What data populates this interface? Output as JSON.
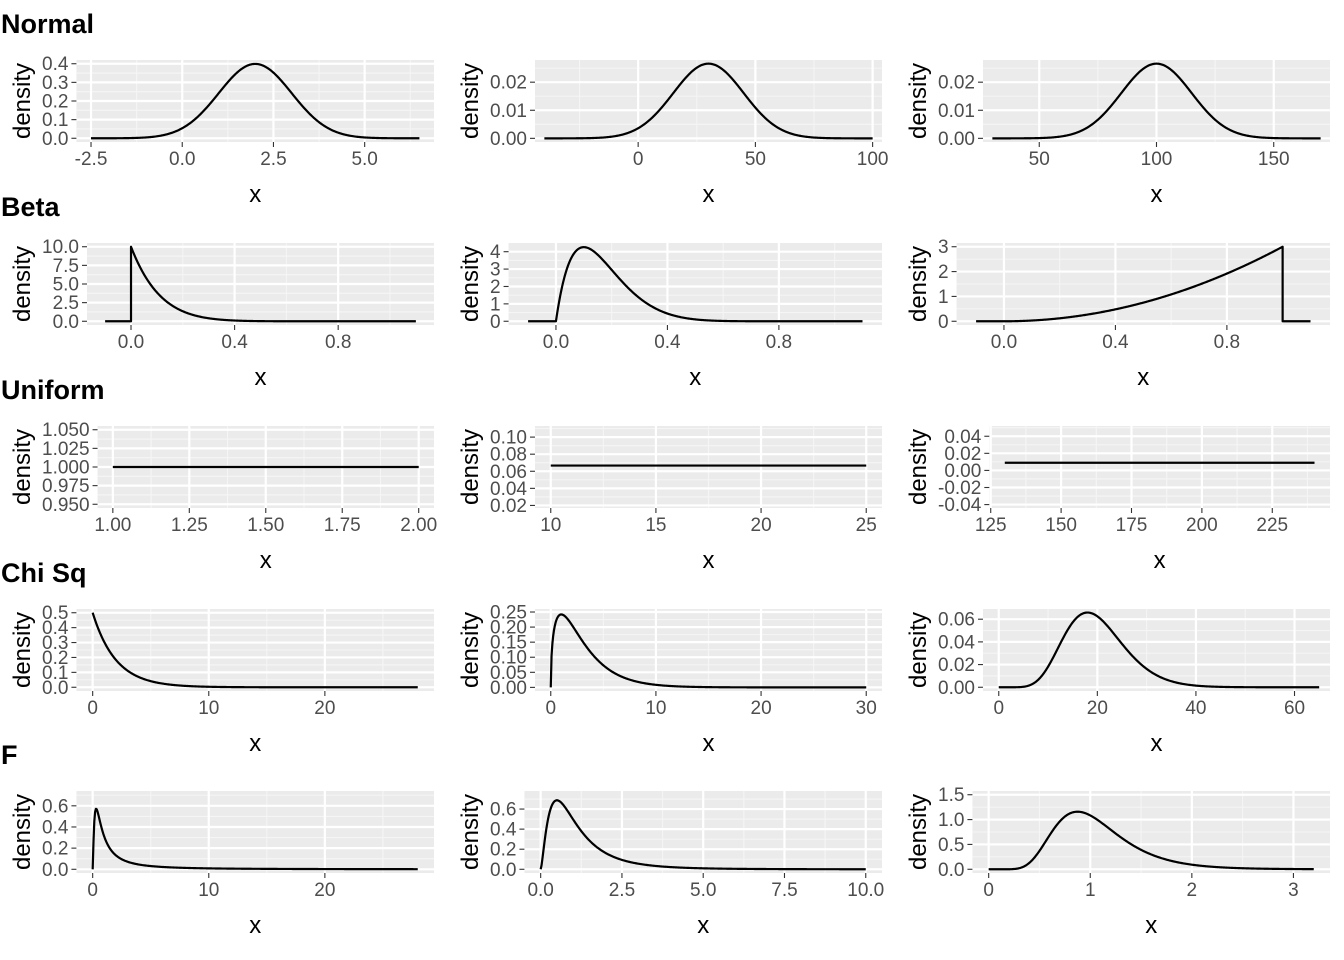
{
  "rows": [
    {
      "title": "Normal",
      "panels": [
        {
          "xlabel": "x",
          "ylabel": "density",
          "xlim": [
            -2.9,
            6.9
          ],
          "ylim": [
            -0.02,
            0.42
          ],
          "xticks": [
            -2.5,
            0.0,
            2.5,
            5.0
          ],
          "xtick_labels": [
            "-2.5",
            "0.0",
            "2.5",
            "5.0"
          ],
          "yticks": [
            0.0,
            0.1,
            0.2,
            0.3,
            0.4
          ],
          "ytick_labels": [
            "0.0",
            "0.1",
            "0.2",
            "0.3",
            "0.4"
          ],
          "curve": {
            "dist": "normal",
            "mean": 2,
            "sd": 1,
            "from": -2.5,
            "to": 6.5
          }
        },
        {
          "xlabel": "x",
          "ylabel": "density",
          "xlim": [
            -44,
            104
          ],
          "ylim": [
            -0.0013,
            0.0279
          ],
          "xticks": [
            0,
            50,
            100
          ],
          "xtick_labels": [
            "0",
            "50",
            "100"
          ],
          "yticks": [
            0.0,
            0.01,
            0.02
          ],
          "ytick_labels": [
            "0.00",
            "0.01",
            "0.02"
          ],
          "curve": {
            "dist": "normal",
            "mean": 30,
            "sd": 15,
            "from": -40,
            "to": 100
          }
        },
        {
          "xlabel": "x",
          "ylabel": "density",
          "xlim": [
            26,
            174
          ],
          "ylim": [
            -0.0013,
            0.0279
          ],
          "xticks": [
            50,
            100,
            150
          ],
          "xtick_labels": [
            "50",
            "100",
            "150"
          ],
          "yticks": [
            0.0,
            0.01,
            0.02
          ],
          "ytick_labels": [
            "0.00",
            "0.01",
            "0.02"
          ],
          "curve": {
            "dist": "normal",
            "mean": 100,
            "sd": 15,
            "from": 30,
            "to": 170
          }
        }
      ]
    },
    {
      "title": "Beta",
      "panels": [
        {
          "xlabel": "x",
          "ylabel": "density",
          "xlim": [
            -0.17,
            1.17
          ],
          "ylim": [
            -0.5,
            10.5
          ],
          "xticks": [
            0.0,
            0.4,
            0.8
          ],
          "xtick_labels": [
            "0.0",
            "0.4",
            "0.8"
          ],
          "yticks": [
            0.0,
            2.5,
            5.0,
            7.5,
            10.0
          ],
          "ytick_labels": [
            "0.0",
            "2.5",
            "5.0",
            "7.5",
            "10.0"
          ],
          "curve": {
            "dist": "beta",
            "a": 1,
            "b": 10,
            "from": -0.1,
            "to": 1.1
          }
        },
        {
          "xlabel": "x",
          "ylabel": "density",
          "xlim": [
            -0.17,
            1.17
          ],
          "ylim": [
            -0.215,
            4.5
          ],
          "xticks": [
            0.0,
            0.4,
            0.8
          ],
          "xtick_labels": [
            "0.0",
            "0.4",
            "0.8"
          ],
          "yticks": [
            0,
            1,
            2,
            3,
            4
          ],
          "ytick_labels": [
            "0",
            "1",
            "2",
            "3",
            "4"
          ],
          "curve": {
            "dist": "beta",
            "a": 2,
            "b": 10,
            "from": -0.1,
            "to": 1.1
          }
        },
        {
          "xlabel": "x",
          "ylabel": "density",
          "xlim": [
            -0.17,
            1.17
          ],
          "ylim": [
            -0.15,
            3.15
          ],
          "xticks": [
            0.0,
            0.4,
            0.8
          ],
          "xtick_labels": [
            "0.0",
            "0.4",
            "0.8"
          ],
          "yticks": [
            0,
            1,
            2,
            3
          ],
          "ytick_labels": [
            "0",
            "1",
            "2",
            "3"
          ],
          "curve": {
            "dist": "beta",
            "a": 3,
            "b": 1,
            "from": -0.1,
            "to": 1.1
          }
        }
      ]
    },
    {
      "title": "Uniform",
      "panels": [
        {
          "xlabel": "x",
          "ylabel": "density",
          "xlim": [
            0.95,
            2.05
          ],
          "ylim": [
            0.945,
            1.055
          ],
          "xticks": [
            1.0,
            1.25,
            1.5,
            1.75,
            2.0
          ],
          "xtick_labels": [
            "1.00",
            "1.25",
            "1.50",
            "1.75",
            "2.00"
          ],
          "yticks": [
            0.95,
            0.975,
            1.0,
            1.025,
            1.05
          ],
          "ytick_labels": [
            "0.950",
            "0.975",
            "1.000",
            "1.025",
            "1.050"
          ],
          "curve": {
            "dist": "uniform",
            "density": 1.0,
            "from": 1,
            "to": 2
          }
        },
        {
          "xlabel": "x",
          "ylabel": "density",
          "xlim": [
            9.25,
            25.75
          ],
          "ylim": [
            0.017,
            0.113
          ],
          "xticks": [
            10,
            15,
            20,
            25
          ],
          "xtick_labels": [
            "10",
            "15",
            "20",
            "25"
          ],
          "yticks": [
            0.02,
            0.04,
            0.06,
            0.08,
            0.1
          ],
          "ytick_labels": [
            "0.02",
            "0.04",
            "0.06",
            "0.08",
            "0.10"
          ],
          "curve": {
            "dist": "uniform",
            "density": 0.0667,
            "from": 10,
            "to": 25
          }
        },
        {
          "xlabel": "x",
          "ylabel": "density",
          "xlim": [
            124.5,
            245.5
          ],
          "ylim": [
            -0.044,
            0.052
          ],
          "xticks": [
            125,
            150,
            175,
            200,
            225
          ],
          "xtick_labels": [
            "125",
            "150",
            "175",
            "200",
            "225"
          ],
          "yticks": [
            -0.04,
            -0.02,
            0.0,
            0.02,
            0.04
          ],
          "ytick_labels": [
            "-0.04",
            "-0.02",
            "0.00",
            "0.02",
            "0.04"
          ],
          "curve": {
            "dist": "uniform",
            "density": 0.009,
            "from": 130,
            "to": 240
          }
        }
      ]
    },
    {
      "title": "Chi Sq",
      "panels": [
        {
          "xlabel": "x",
          "ylabel": "density",
          "xlim": [
            -1.4,
            29.4
          ],
          "ylim": [
            -0.025,
            0.525
          ],
          "xticks": [
            0,
            10,
            20
          ],
          "xtick_labels": [
            "0",
            "10",
            "20"
          ],
          "yticks": [
            0.0,
            0.1,
            0.2,
            0.3,
            0.4,
            0.5
          ],
          "ytick_labels": [
            "0.0",
            "0.1",
            "0.2",
            "0.3",
            "0.4",
            "0.5"
          ],
          "curve": {
            "dist": "chisq",
            "df": 2,
            "from": 0,
            "to": 28
          }
        },
        {
          "xlabel": "x",
          "ylabel": "density",
          "xlim": [
            -1.5,
            31.5
          ],
          "ylim": [
            -0.012,
            0.26
          ],
          "xticks": [
            0,
            10,
            20,
            30
          ],
          "xtick_labels": [
            "0",
            "10",
            "20",
            "30"
          ],
          "yticks": [
            0.0,
            0.05,
            0.1,
            0.15,
            0.2,
            0.25
          ],
          "ytick_labels": [
            "0.00",
            "0.05",
            "0.10",
            "0.15",
            "0.20",
            "0.25"
          ],
          "curve": {
            "dist": "chisq",
            "df": 3,
            "from": 0,
            "to": 30
          }
        },
        {
          "xlabel": "x",
          "ylabel": "density",
          "xlim": [
            -3.2,
            67.2
          ],
          "ylim": [
            -0.0033,
            0.069
          ],
          "xticks": [
            0,
            20,
            40,
            60
          ],
          "xtick_labels": [
            "0",
            "20",
            "40",
            "60"
          ],
          "yticks": [
            0.0,
            0.02,
            0.04,
            0.06
          ],
          "ytick_labels": [
            "0.00",
            "0.02",
            "0.04",
            "0.06"
          ],
          "curve": {
            "dist": "chisq",
            "df": 20,
            "from": 0,
            "to": 65
          }
        }
      ]
    },
    {
      "title": "F",
      "panels": [
        {
          "xlabel": "x",
          "ylabel": "density",
          "xlim": [
            -1.4,
            29.4
          ],
          "ylim": [
            -0.035,
            0.74
          ],
          "xticks": [
            0,
            10,
            20
          ],
          "xtick_labels": [
            "0",
            "10",
            "20"
          ],
          "yticks": [
            0.0,
            0.2,
            0.4,
            0.6
          ],
          "ytick_labels": [
            "0.0",
            "0.2",
            "0.4",
            "0.6"
          ],
          "curve": {
            "dist": "f",
            "df1": 5,
            "df2": 2,
            "from": 0,
            "to": 28
          }
        },
        {
          "xlabel": "x",
          "ylabel": "density",
          "xlim": [
            -0.5,
            10.5
          ],
          "ylim": [
            -0.037,
            0.78
          ],
          "xticks": [
            0.0,
            2.5,
            5.0,
            7.5,
            10.0
          ],
          "xtick_labels": [
            "0.0",
            "2.5",
            "5.0",
            "7.5",
            "10.0"
          ],
          "yticks": [
            0.0,
            0.2,
            0.4,
            0.6
          ],
          "ytick_labels": [
            "0.0",
            "0.2",
            "0.4",
            "0.6"
          ],
          "curve": {
            "dist": "f",
            "df1": 5,
            "df2": 10,
            "from": 0,
            "to": 10
          }
        },
        {
          "xlabel": "x",
          "ylabel": "density",
          "xlim": [
            -0.16,
            3.36
          ],
          "ylim": [
            -0.075,
            1.575
          ],
          "xticks": [
            0,
            1,
            2,
            3
          ],
          "xtick_labels": [
            "0",
            "1",
            "2",
            "3"
          ],
          "yticks": [
            0.0,
            0.5,
            1.0,
            1.5
          ],
          "ytick_labels": [
            "0.0",
            "0.5",
            "1.0",
            "1.5"
          ],
          "curve": {
            "dist": "f",
            "df1": 30,
            "df2": 30,
            "from": 0,
            "to": 3.2
          }
        }
      ]
    }
  ],
  "chart_data": {
    "type": "line",
    "layout": "5 rows x 3 columns of density curves",
    "rows": [
      "Normal",
      "Beta",
      "Uniform",
      "Chi Sq",
      "F"
    ],
    "xlabel": "x",
    "ylabel": "density",
    "grid": true
  }
}
